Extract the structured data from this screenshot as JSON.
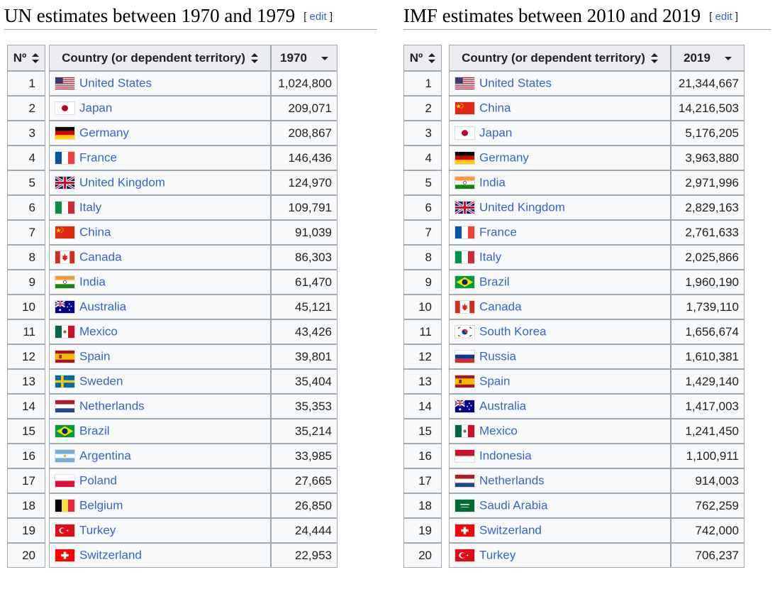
{
  "un": {
    "heading": "UN estimates between 1970 and 1979",
    "edit_label": "edit",
    "col_rank": "Nº",
    "col_country": "Country (or dependent territory)",
    "col_value": "1970",
    "rows": [
      {
        "rank": "1",
        "country": "United States",
        "flag": "us",
        "value": "1,024,800"
      },
      {
        "rank": "2",
        "country": "Japan",
        "flag": "jp",
        "value": "209,071"
      },
      {
        "rank": "3",
        "country": "Germany",
        "flag": "de",
        "value": "208,867"
      },
      {
        "rank": "4",
        "country": "France",
        "flag": "fr",
        "value": "146,436"
      },
      {
        "rank": "5",
        "country": "United Kingdom",
        "flag": "gb",
        "value": "124,970"
      },
      {
        "rank": "6",
        "country": "Italy",
        "flag": "it",
        "value": "109,791"
      },
      {
        "rank": "7",
        "country": "China",
        "flag": "cn",
        "value": "91,039"
      },
      {
        "rank": "8",
        "country": "Canada",
        "flag": "ca",
        "value": "86,303"
      },
      {
        "rank": "9",
        "country": "India",
        "flag": "in",
        "value": "61,470"
      },
      {
        "rank": "10",
        "country": "Australia",
        "flag": "au",
        "value": "45,121"
      },
      {
        "rank": "11",
        "country": "Mexico",
        "flag": "mx",
        "value": "43,426"
      },
      {
        "rank": "12",
        "country": "Spain",
        "flag": "es",
        "value": "39,801"
      },
      {
        "rank": "13",
        "country": "Sweden",
        "flag": "se",
        "value": "35,404"
      },
      {
        "rank": "14",
        "country": "Netherlands",
        "flag": "nl",
        "value": "35,353"
      },
      {
        "rank": "15",
        "country": "Brazil",
        "flag": "br",
        "value": "35,214"
      },
      {
        "rank": "16",
        "country": "Argentina",
        "flag": "ar",
        "value": "33,985"
      },
      {
        "rank": "17",
        "country": "Poland",
        "flag": "pl",
        "value": "27,665"
      },
      {
        "rank": "18",
        "country": "Belgium",
        "flag": "be",
        "value": "26,850"
      },
      {
        "rank": "19",
        "country": "Turkey",
        "flag": "tr",
        "value": "24,444"
      },
      {
        "rank": "20",
        "country": "Switzerland",
        "flag": "ch",
        "value": "22,953"
      }
    ]
  },
  "imf": {
    "heading": "IMF estimates between 2010 and 2019",
    "edit_label": "edit",
    "col_rank": "Nº",
    "col_country": "Country (or dependent territory)",
    "col_value": "2019",
    "rows": [
      {
        "rank": "1",
        "country": "United States",
        "flag": "us",
        "value": "21,344,667"
      },
      {
        "rank": "2",
        "country": "China",
        "flag": "cn",
        "value": "14,216,503"
      },
      {
        "rank": "3",
        "country": "Japan",
        "flag": "jp",
        "value": "5,176,205"
      },
      {
        "rank": "4",
        "country": "Germany",
        "flag": "de",
        "value": "3,963,880"
      },
      {
        "rank": "5",
        "country": "India",
        "flag": "in",
        "value": "2,971,996"
      },
      {
        "rank": "6",
        "country": "United Kingdom",
        "flag": "gb",
        "value": "2,829,163"
      },
      {
        "rank": "7",
        "country": "France",
        "flag": "fr",
        "value": "2,761,633"
      },
      {
        "rank": "8",
        "country": "Italy",
        "flag": "it",
        "value": "2,025,866"
      },
      {
        "rank": "9",
        "country": "Brazil",
        "flag": "br",
        "value": "1,960,190"
      },
      {
        "rank": "10",
        "country": "Canada",
        "flag": "ca",
        "value": "1,739,110"
      },
      {
        "rank": "11",
        "country": "South Korea",
        "flag": "kr",
        "value": "1,656,674"
      },
      {
        "rank": "12",
        "country": "Russia",
        "flag": "ru",
        "value": "1,610,381"
      },
      {
        "rank": "13",
        "country": "Spain",
        "flag": "es",
        "value": "1,429,140"
      },
      {
        "rank": "14",
        "country": "Australia",
        "flag": "au",
        "value": "1,417,003"
      },
      {
        "rank": "15",
        "country": "Mexico",
        "flag": "mx",
        "value": "1,241,450"
      },
      {
        "rank": "16",
        "country": "Indonesia",
        "flag": "id",
        "value": "1,100,911"
      },
      {
        "rank": "17",
        "country": "Netherlands",
        "flag": "nl",
        "value": "914,003"
      },
      {
        "rank": "18",
        "country": "Saudi Arabia",
        "flag": "sa",
        "value": "762,259"
      },
      {
        "rank": "19",
        "country": "Switzerland",
        "flag": "ch",
        "value": "742,000"
      },
      {
        "rank": "20",
        "country": "Turkey",
        "flag": "tr",
        "value": "706,237"
      }
    ]
  }
}
